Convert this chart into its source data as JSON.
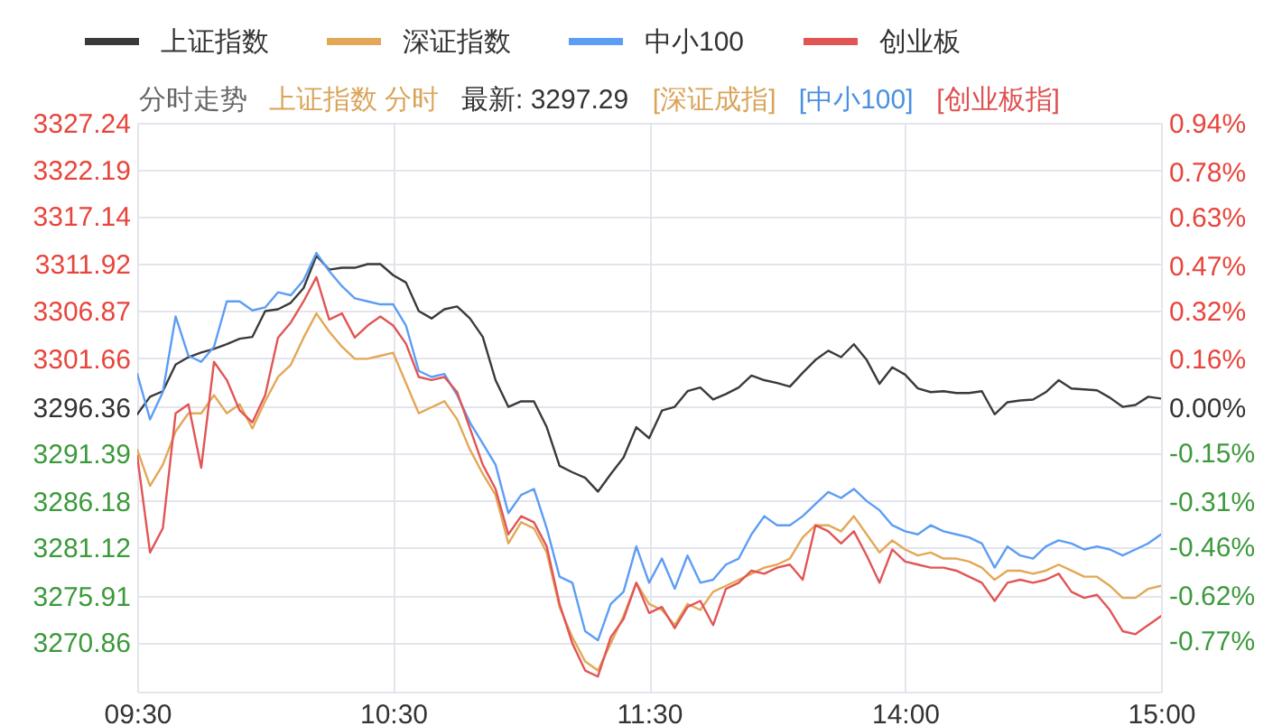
{
  "chart_data": {
    "type": "line",
    "title": "分时走势",
    "annotations": [
      "上证指数 分时",
      "最新: 3297.29",
      "[深证成指]",
      "[中小100]",
      "[创业板指]"
    ],
    "categories": [
      "09:30",
      null,
      null,
      null,
      null,
      null,
      null,
      null,
      null,
      null,
      null,
      null,
      null,
      null,
      null,
      null,
      null,
      null,
      null,
      null,
      "10:30",
      null,
      null,
      null,
      null,
      null,
      null,
      null,
      null,
      null,
      null,
      null,
      null,
      null,
      null,
      null,
      null,
      null,
      null,
      null,
      "11:30",
      null,
      null,
      null,
      null,
      null,
      null,
      null,
      null,
      null,
      null,
      null,
      null,
      null,
      null,
      null,
      null,
      null,
      null,
      null,
      "14:00",
      null,
      null,
      null,
      null,
      null,
      null,
      null,
      null,
      null,
      null,
      null,
      null,
      null,
      null,
      null,
      null,
      null,
      null,
      null,
      "15:00"
    ],
    "ylim": [
      3265.48,
      3327.24
    ],
    "yticks": [
      3270.86,
      3275.91,
      3281.12,
      3286.18,
      3291.39,
      3296.36,
      3301.66,
      3306.87,
      3311.92,
      3317.14,
      3322.19,
      3327.24
    ],
    "y2lim": [
      -0.94,
      0.94
    ],
    "y2ticks": [
      {
        "value": -0.77,
        "label": "-0.77%"
      },
      {
        "value": -0.62,
        "label": "-0.62%"
      },
      {
        "value": -0.46,
        "label": "-0.46%"
      },
      {
        "value": -0.31,
        "label": "-0.31%"
      },
      {
        "value": -0.15,
        "label": "-0.15%"
      },
      {
        "value": 0,
        "label": "0.00%"
      },
      {
        "value": 0.16,
        "label": "0.16%"
      },
      {
        "value": 0.32,
        "label": "0.32%"
      },
      {
        "value": 0.47,
        "label": "0.47%"
      },
      {
        "value": 0.63,
        "label": "0.63%"
      },
      {
        "value": 0.78,
        "label": "0.78%"
      },
      {
        "value": 0.94,
        "label": "0.94%"
      }
    ],
    "grid": true,
    "legend": "top",
    "line_style": "solid",
    "series": [
      {
        "name": "上证指数",
        "color": "#3a3a3a",
        "axis": "y",
        "values": [
          3295.6,
          3297.5,
          3298.1,
          3301.0,
          3301.8,
          3302.3,
          3302.7,
          3303.2,
          3303.8,
          3304.0,
          3306.8,
          3307.0,
          3307.7,
          3309.3,
          3312.8,
          3311.3,
          3311.5,
          3311.5,
          3311.9,
          3311.9,
          3310.7,
          3309.9,
          3306.8,
          3306.0,
          3307.0,
          3307.3,
          3306.0,
          3304.0,
          3299.3,
          3296.4,
          3297.0,
          3297.0,
          3294.2,
          3290.0,
          3289.3,
          3288.7,
          3287.2,
          3289.1,
          3290.9,
          3294.2,
          3293.0,
          3296.0,
          3296.4,
          3298.1,
          3298.5,
          3297.2,
          3297.8,
          3298.5,
          3299.8,
          3299.3,
          3299.0,
          3298.6,
          3300.1,
          3301.5,
          3302.5,
          3301.8,
          3303.2,
          3301.5,
          3298.9,
          3300.7,
          3299.9,
          3298.4,
          3298.0,
          3298.1,
          3297.9,
          3297.9,
          3298.1,
          3295.6,
          3296.9,
          3297.1,
          3297.2,
          3298.0,
          3299.3,
          3298.4,
          3298.3,
          3298.2,
          3297.4,
          3296.4,
          3296.6,
          3297.5,
          3297.3
        ]
      },
      {
        "name": "深证指数",
        "color": "#e3a857",
        "axis": "y2",
        "values": [
          -0.14,
          -0.26,
          -0.19,
          -0.08,
          -0.02,
          -0.02,
          0.04,
          -0.02,
          0.01,
          -0.07,
          0.02,
          0.1,
          0.14,
          0.23,
          0.31,
          0.25,
          0.2,
          0.16,
          0.16,
          0.17,
          0.18,
          0.08,
          -0.02,
          0.0,
          0.02,
          -0.04,
          -0.14,
          -0.22,
          -0.29,
          -0.45,
          -0.38,
          -0.4,
          -0.48,
          -0.66,
          -0.76,
          -0.84,
          -0.87,
          -0.78,
          -0.69,
          -0.58,
          -0.65,
          -0.67,
          -0.72,
          -0.65,
          -0.67,
          -0.61,
          -0.59,
          -0.57,
          -0.55,
          -0.53,
          -0.52,
          -0.5,
          -0.43,
          -0.39,
          -0.39,
          -0.41,
          -0.36,
          -0.42,
          -0.48,
          -0.44,
          -0.47,
          -0.49,
          -0.48,
          -0.5,
          -0.5,
          -0.51,
          -0.53,
          -0.57,
          -0.54,
          -0.54,
          -0.55,
          -0.54,
          -0.52,
          -0.54,
          -0.56,
          -0.56,
          -0.59,
          -0.63,
          -0.63,
          -0.6,
          -0.59
        ]
      },
      {
        "name": "中小100",
        "color": "#5c9df5",
        "axis": "y2",
        "values": [
          0.11,
          -0.04,
          0.05,
          0.3,
          0.17,
          0.15,
          0.2,
          0.35,
          0.35,
          0.32,
          0.33,
          0.38,
          0.37,
          0.42,
          0.51,
          0.45,
          0.4,
          0.36,
          0.35,
          0.34,
          0.34,
          0.27,
          0.12,
          0.1,
          0.11,
          0.04,
          -0.05,
          -0.12,
          -0.19,
          -0.35,
          -0.29,
          -0.27,
          -0.4,
          -0.56,
          -0.58,
          -0.74,
          -0.77,
          -0.65,
          -0.61,
          -0.46,
          -0.58,
          -0.5,
          -0.6,
          -0.49,
          -0.58,
          -0.57,
          -0.52,
          -0.5,
          -0.42,
          -0.36,
          -0.39,
          -0.39,
          -0.36,
          -0.32,
          -0.28,
          -0.3,
          -0.27,
          -0.31,
          -0.34,
          -0.39,
          -0.41,
          -0.42,
          -0.39,
          -0.41,
          -0.42,
          -0.43,
          -0.45,
          -0.53,
          -0.46,
          -0.49,
          -0.5,
          -0.46,
          -0.44,
          -0.45,
          -0.47,
          -0.46,
          -0.47,
          -0.49,
          -0.47,
          -0.45,
          -0.42
        ]
      },
      {
        "name": "创业板",
        "color": "#e25555",
        "axis": "y2",
        "values": [
          -0.16,
          -0.48,
          -0.4,
          -0.02,
          0.01,
          -0.2,
          0.15,
          0.09,
          -0.01,
          -0.05,
          0.04,
          0.23,
          0.28,
          0.35,
          0.43,
          0.29,
          0.31,
          0.23,
          0.27,
          0.3,
          0.27,
          0.21,
          0.1,
          0.09,
          0.1,
          0.05,
          -0.07,
          -0.19,
          -0.27,
          -0.42,
          -0.36,
          -0.38,
          -0.46,
          -0.65,
          -0.78,
          -0.87,
          -0.89,
          -0.76,
          -0.7,
          -0.58,
          -0.68,
          -0.66,
          -0.73,
          -0.66,
          -0.64,
          -0.72,
          -0.6,
          -0.58,
          -0.54,
          -0.55,
          -0.53,
          -0.52,
          -0.57,
          -0.39,
          -0.41,
          -0.45,
          -0.41,
          -0.49,
          -0.58,
          -0.47,
          -0.51,
          -0.52,
          -0.53,
          -0.53,
          -0.54,
          -0.56,
          -0.58,
          -0.64,
          -0.58,
          -0.57,
          -0.58,
          -0.57,
          -0.55,
          -0.61,
          -0.63,
          -0.62,
          -0.67,
          -0.74,
          -0.75,
          -0.72,
          -0.69
        ]
      }
    ]
  }
}
